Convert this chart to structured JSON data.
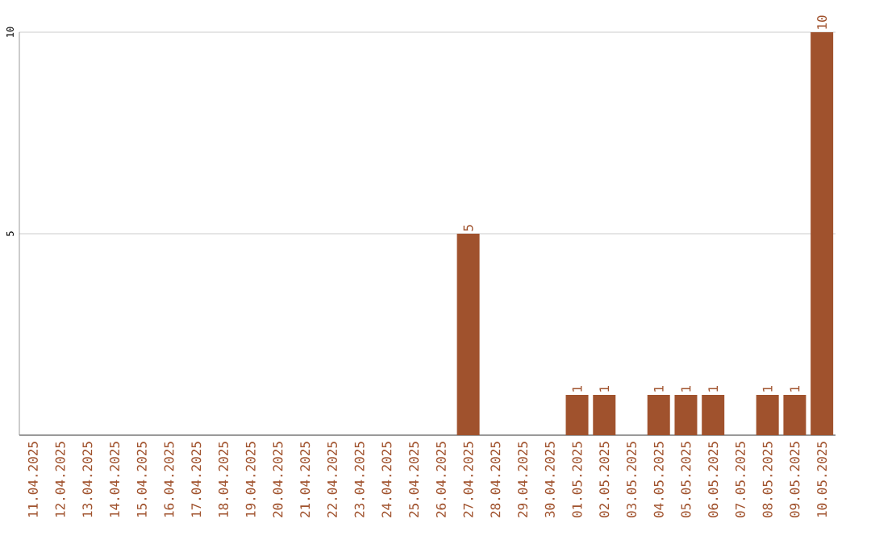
{
  "chart_data": {
    "type": "bar",
    "categories": [
      "11.04.2025",
      "12.04.2025",
      "13.04.2025",
      "14.04.2025",
      "15.04.2025",
      "16.04.2025",
      "17.04.2025",
      "18.04.2025",
      "19.04.2025",
      "20.04.2025",
      "21.04.2025",
      "22.04.2025",
      "23.04.2025",
      "24.04.2025",
      "25.04.2025",
      "26.04.2025",
      "27.04.2025",
      "28.04.2025",
      "29.04.2025",
      "30.04.2025",
      "01.05.2025",
      "02.05.2025",
      "03.05.2025",
      "04.05.2025",
      "05.05.2025",
      "06.05.2025",
      "07.05.2025",
      "08.05.2025",
      "09.05.2025",
      "10.05.2025"
    ],
    "values": [
      0,
      0,
      0,
      0,
      0,
      0,
      0,
      0,
      0,
      0,
      0,
      0,
      0,
      0,
      0,
      0,
      5,
      0,
      0,
      0,
      1,
      1,
      0,
      1,
      1,
      1,
      0,
      1,
      1,
      10
    ],
    "value_labels": [
      null,
      null,
      null,
      null,
      null,
      null,
      null,
      null,
      null,
      null,
      null,
      null,
      null,
      null,
      null,
      null,
      "5",
      null,
      null,
      null,
      "1",
      "1",
      null,
      "1",
      "1",
      "1",
      null,
      "1",
      "1",
      "10"
    ],
    "color": "#a0522d",
    "ylim": [
      0,
      10
    ],
    "yticks": [
      5,
      10
    ],
    "grid": "y"
  }
}
